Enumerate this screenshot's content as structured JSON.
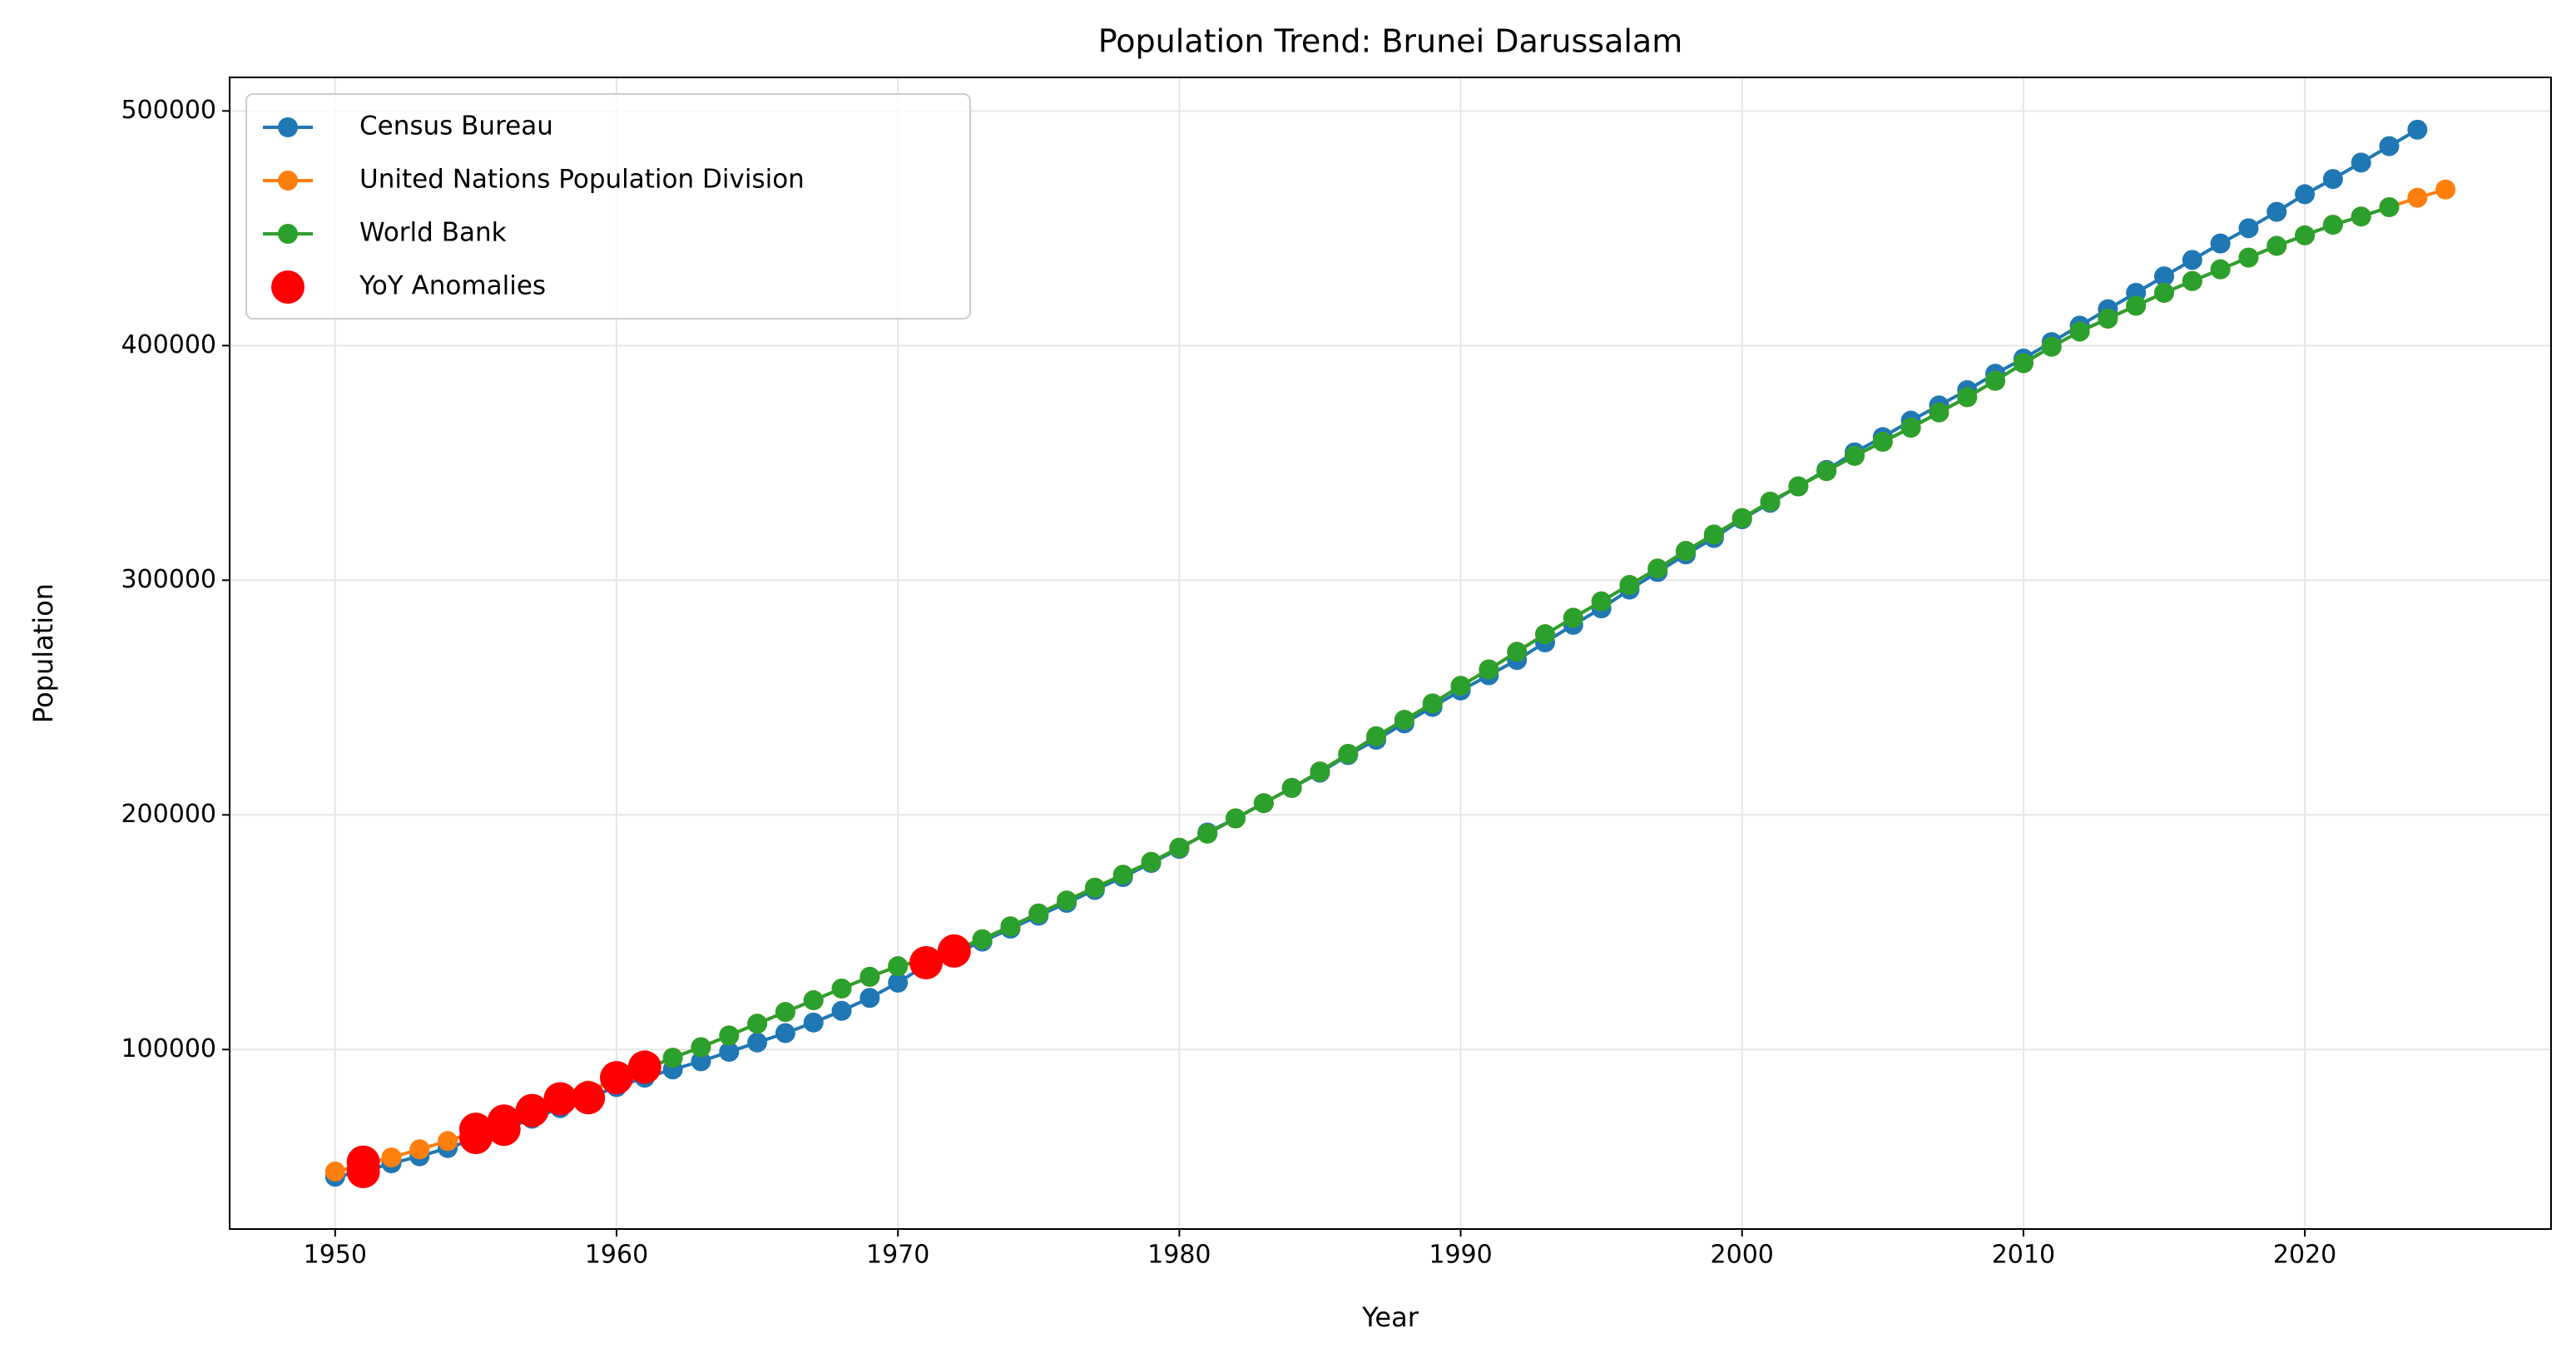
{
  "chart_data": {
    "type": "line",
    "title": "Population Trend: Brunei Darussalam",
    "x_label": "Year",
    "y_label": "Population",
    "xlim": [
      1946.25,
      2028.75
    ],
    "xticks": [
      1950,
      1960,
      1970,
      1980,
      1990,
      2000,
      2010,
      2020
    ],
    "ylim": [
      23500,
      514300
    ],
    "yticks": [
      100000,
      200000,
      300000,
      400000,
      500000
    ],
    "grid": true,
    "legend": "upper left",
    "series": [
      {
        "name": "Census Bureau",
        "color": "#1f77b4",
        "x": [
          1950,
          1951,
          1952,
          1953,
          1954,
          1955,
          1956,
          1957,
          1958,
          1959,
          1960,
          1961,
          1962,
          1963,
          1964,
          1965,
          1966,
          1967,
          1968,
          1969,
          1970,
          1971,
          1972,
          1973,
          1974,
          1975,
          1976,
          1977,
          1978,
          1979,
          1980,
          1981,
          1982,
          1983,
          1984,
          1985,
          1986,
          1987,
          1988,
          1989,
          1990,
          1991,
          1992,
          1993,
          1994,
          1995,
          1996,
          1997,
          1998,
          1999,
          2000,
          2001,
          2002,
          2003,
          2004,
          2005,
          2006,
          2007,
          2008,
          2009,
          2010,
          2011,
          2012,
          2013,
          2014,
          2015,
          2016,
          2017,
          2018,
          2019,
          2020,
          2021,
          2022,
          2023,
          2024
        ],
        "values": [
          45800,
          48000,
          51500,
          54500,
          58000,
          62000,
          66000,
          70500,
          75000,
          79500,
          84000,
          88000,
          91500,
          95000,
          99000,
          103000,
          107000,
          111500,
          116500,
          122000,
          128500,
          136000,
          141000,
          146000,
          151500,
          157000,
          162500,
          168000,
          173500,
          179500,
          185500,
          192500,
          198500,
          205000,
          211500,
          218000,
          225500,
          232000,
          239000,
          246000,
          253000,
          259500,
          266000,
          273500,
          281000,
          288000,
          296000,
          303500,
          311000,
          318000,
          326000,
          333000,
          340000,
          347000,
          354500,
          361000,
          368000,
          374500,
          381000,
          388000,
          394500,
          401500,
          408500,
          415500,
          422500,
          429500,
          436500,
          443500,
          450000,
          457000,
          464500,
          471000,
          478000,
          485000,
          492000
        ]
      },
      {
        "name": "United Nations Population Division",
        "color": "#ff7f0e",
        "x": [
          1950,
          1951,
          1952,
          1953,
          1954,
          1955,
          1956,
          1957,
          1958,
          1959,
          1960,
          1961,
          1962,
          1963,
          1964,
          1965,
          1966,
          1967,
          1968,
          1969,
          1970,
          1971,
          1972,
          1973,
          1974,
          1975,
          1976,
          1977,
          1978,
          1979,
          1980,
          1981,
          1982,
          1983,
          1984,
          1985,
          1986,
          1987,
          1988,
          1989,
          1990,
          1991,
          1992,
          1993,
          1994,
          1995,
          1996,
          1997,
          1998,
          1999,
          2000,
          2001,
          2002,
          2003,
          2004,
          2005,
          2006,
          2007,
          2008,
          2009,
          2010,
          2011,
          2012,
          2013,
          2014,
          2015,
          2016,
          2017,
          2018,
          2019,
          2020,
          2021,
          2022,
          2023,
          2024,
          2025
        ],
        "values": [
          48000,
          51000,
          54000,
          57500,
          61000,
          65000,
          69000,
          73500,
          78000,
          82500,
          87000,
          91500,
          96500,
          101000,
          106000,
          111000,
          116000,
          121000,
          126000,
          131000,
          135500,
          138500,
          142500,
          147000,
          152500,
          158000,
          163500,
          169000,
          174500,
          180000,
          186000,
          192000,
          198500,
          205000,
          211500,
          218500,
          226000,
          233500,
          240500,
          247500,
          255000,
          262000,
          269500,
          277000,
          284000,
          291000,
          298000,
          305000,
          312500,
          319500,
          326500,
          333500,
          340000,
          346500,
          353000,
          359000,
          365000,
          371500,
          378000,
          385000,
          392500,
          399500,
          406000,
          411500,
          417000,
          422500,
          427500,
          432500,
          437500,
          442500,
          447000,
          451500,
          455000,
          459000,
          463000,
          466500
        ]
      },
      {
        "name": "World Bank",
        "color": "#2ca02c",
        "x": [
          1960,
          1961,
          1962,
          1963,
          1964,
          1965,
          1966,
          1967,
          1968,
          1969,
          1970,
          1971,
          1972,
          1973,
          1974,
          1975,
          1976,
          1977,
          1978,
          1979,
          1980,
          1981,
          1982,
          1983,
          1984,
          1985,
          1986,
          1987,
          1988,
          1989,
          1990,
          1991,
          1992,
          1993,
          1994,
          1995,
          1996,
          1997,
          1998,
          1999,
          2000,
          2001,
          2002,
          2003,
          2004,
          2005,
          2006,
          2007,
          2008,
          2009,
          2010,
          2011,
          2012,
          2013,
          2014,
          2015,
          2016,
          2017,
          2018,
          2019,
          2020,
          2021,
          2022,
          2023
        ],
        "values": [
          87000,
          91500,
          96500,
          101000,
          106000,
          111000,
          116000,
          121000,
          126000,
          131000,
          135500,
          138500,
          142500,
          147000,
          152500,
          158000,
          163500,
          169000,
          174500,
          180000,
          186000,
          192000,
          198500,
          205000,
          211500,
          218500,
          226000,
          233500,
          240500,
          247500,
          255000,
          262000,
          269500,
          277000,
          284000,
          291000,
          298000,
          305000,
          312500,
          319500,
          326500,
          333500,
          340000,
          346500,
          353000,
          359000,
          365000,
          371500,
          378000,
          385000,
          392500,
          399500,
          406000,
          411500,
          417000,
          422500,
          427500,
          432500,
          437500,
          442500,
          447000,
          451500,
          455000,
          459000
        ]
      }
    ],
    "anomalies": {
      "name": "YoY Anomalies",
      "color": "#ff0000",
      "x": [
        1951,
        1951,
        1955,
        1955,
        1956,
        1956,
        1957,
        1958,
        1959,
        1960,
        1961,
        1971,
        1972
      ],
      "values": [
        52000,
        48000,
        66000,
        62500,
        69500,
        66000,
        74000,
        79000,
        79500,
        88000,
        92500,
        137000,
        142000
      ]
    }
  }
}
